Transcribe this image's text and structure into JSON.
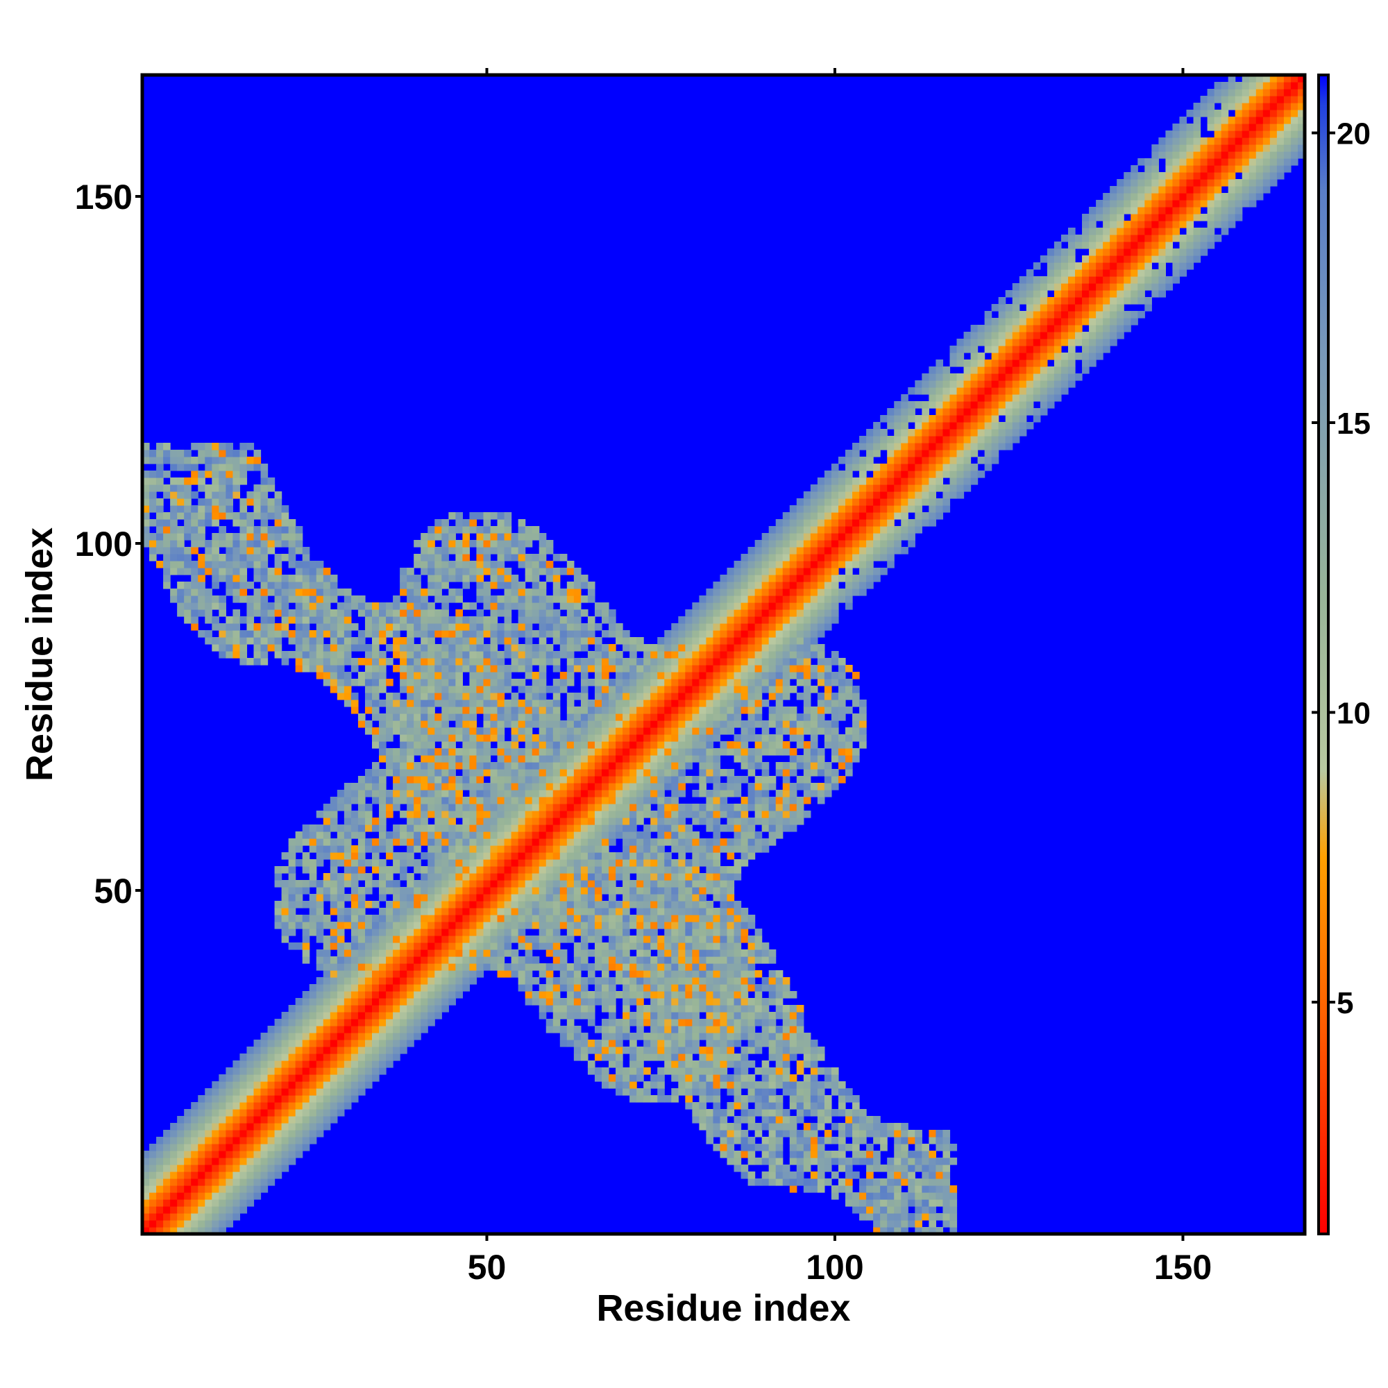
{
  "chart_data": {
    "type": "heatmap",
    "title": "",
    "xlabel": "Residue index",
    "ylabel": "Residue index",
    "n_residues": 167,
    "xlim": [
      1,
      167
    ],
    "ylim": [
      1,
      167
    ],
    "x_ticks": [
      50,
      100,
      150
    ],
    "y_ticks": [
      50,
      100,
      150
    ],
    "colorbar": {
      "range": [
        1,
        21
      ],
      "ticks": [
        5,
        10,
        15,
        20
      ],
      "stops": [
        {
          "value": 1,
          "color": "#ff0000"
        },
        {
          "value": 4.5,
          "color": "#ff5a00"
        },
        {
          "value": 7.5,
          "color": "#ffa000"
        },
        {
          "value": 9,
          "color": "#b8c8a0"
        },
        {
          "value": 12,
          "color": "#98b498"
        },
        {
          "value": 16,
          "color": "#7a9ab8"
        },
        {
          "value": 19,
          "color": "#5a7ec8"
        },
        {
          "value": 20.5,
          "color": "#2040e0"
        },
        {
          "value": 21,
          "color": "#0000ff"
        }
      ]
    },
    "background_value": 21,
    "features": [
      {
        "kind": "diagonal_band",
        "description": "contact-map main diagonal",
        "core_value": 1,
        "halfwidth_residues": 11
      },
      {
        "kind": "antidiagonal_arm",
        "from": [
          1,
          110
        ],
        "to": [
          115,
          5
        ],
        "value_range": [
          6,
          19
        ]
      },
      {
        "kind": "contact_cluster",
        "x_range": [
          25,
          100
        ],
        "y_range": [
          20,
          100
        ],
        "value_range": [
          6,
          19
        ]
      }
    ]
  }
}
